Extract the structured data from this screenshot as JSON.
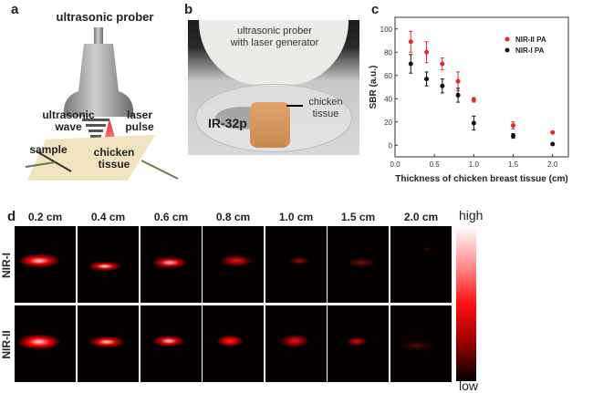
{
  "panel_a": {
    "label": "a",
    "title": "ultrasonic prober",
    "wave": "ultrasonic\nwave",
    "wave_l1": "ultrasonic",
    "wave_l2": "wave",
    "laser_l1": "laser",
    "laser_l2": "pulse",
    "sample": "sample",
    "tissue_l1": "chicken",
    "tissue_l2": "tissue"
  },
  "panel_b": {
    "label": "b",
    "prober_l1": "ultrasonic prober",
    "prober_l2": "with laser generator",
    "tissue_l1": "chicken",
    "tissue_l2": "tissue",
    "sample": "IR-32p"
  },
  "chart_data": {
    "type": "scatter",
    "panel_label": "c",
    "title": "",
    "xlabel": "Thickness of chicken breast tissue (cm)",
    "ylabel": "SBR (a.u.)",
    "xlim": [
      0.0,
      2.2
    ],
    "ylim": [
      -10,
      110
    ],
    "xticks": [
      "0.0",
      "0.5",
      "1.0",
      "1.5",
      "2.0"
    ],
    "yticks": [
      "0",
      "20",
      "40",
      "60",
      "80",
      "100"
    ],
    "legend_position": "top-right",
    "x": [
      0.2,
      0.4,
      0.6,
      0.8,
      1.0,
      1.5,
      2.0
    ],
    "series": [
      {
        "name": "NIR-II PA",
        "color": "#e8262a",
        "values": [
          89,
          80,
          70,
          55,
          39,
          17,
          11
        ],
        "errors": [
          9,
          9,
          5,
          8,
          2,
          3,
          1
        ]
      },
      {
        "name": "NIR-I  PA",
        "color": "#111111",
        "values": [
          70,
          57,
          51,
          43,
          19,
          8,
          1
        ],
        "errors": [
          8,
          6,
          6,
          6,
          6,
          2,
          0.5
        ]
      }
    ]
  },
  "panel_d": {
    "label": "d",
    "columns": [
      "0.2 cm",
      "0.4 cm",
      "0.6 cm",
      "0.8 cm",
      "1.0 cm",
      "1.5 cm",
      "2.0 cm"
    ],
    "rows": [
      "NIR-I",
      "NIR-II"
    ],
    "intensity": [
      [
        0.95,
        0.85,
        0.85,
        0.6,
        0.35,
        0.25,
        0.05
      ],
      [
        1.0,
        0.9,
        0.85,
        0.8,
        0.6,
        0.55,
        0.12
      ]
    ],
    "colorbar": {
      "high": "high",
      "low": "low"
    }
  }
}
